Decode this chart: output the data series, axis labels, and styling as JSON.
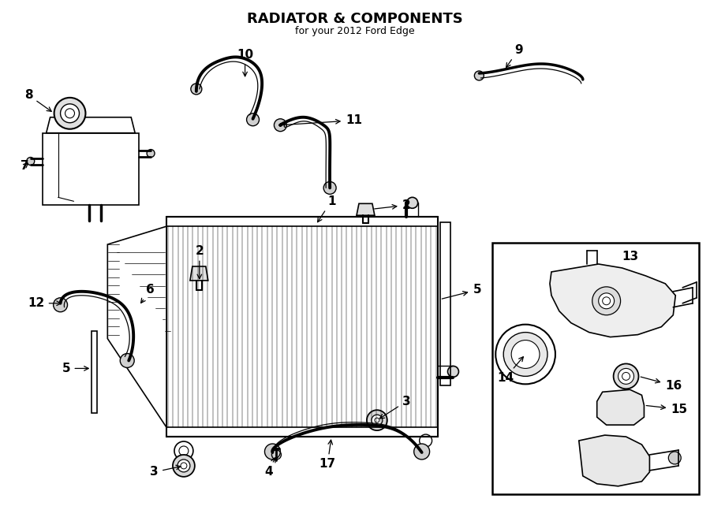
{
  "title": "RADIATOR & COMPONENTS",
  "subtitle": "for your 2012 Ford Edge",
  "bg_color": "#ffffff",
  "line_color": "#000000",
  "fig_width": 9.0,
  "fig_height": 6.61,
  "dpi": 100
}
